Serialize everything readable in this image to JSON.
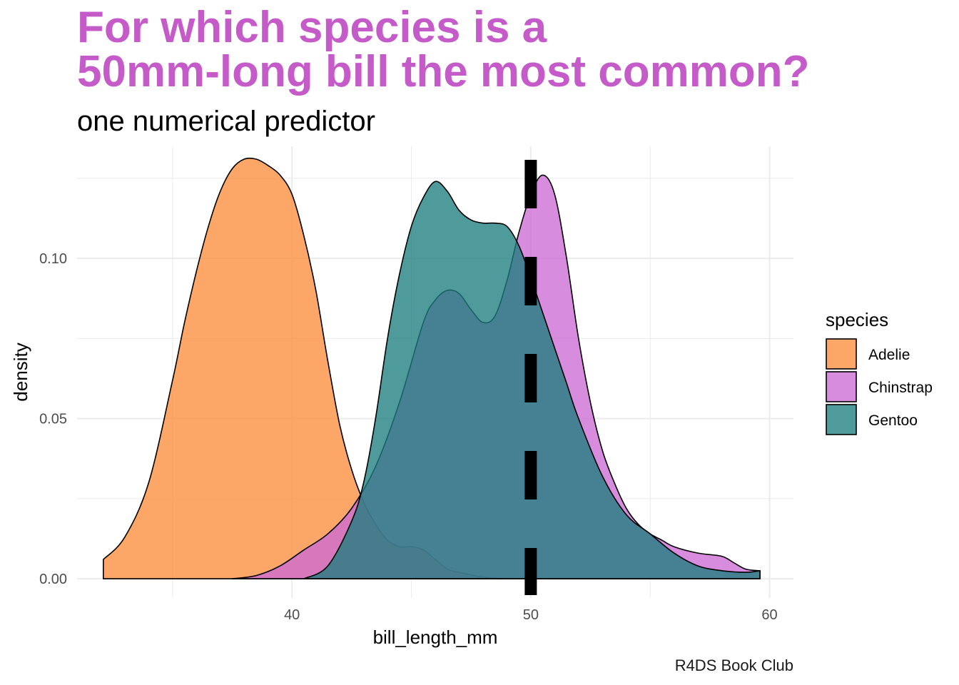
{
  "header": {
    "title_line1": "For which species is a",
    "title_line2": "50mm-long bill the most common?",
    "subtitle": "one numerical predictor"
  },
  "caption": "R4DS Book Club",
  "colors": {
    "title": "#C55BC8",
    "Adelie": "#FB8D3D",
    "Chinstrap": "#CC6BD3",
    "Gentoo": "#1D7D7E",
    "grid": "#EBEBEB"
  },
  "chart_data": {
    "type": "area",
    "subtype": "density",
    "title": "For which species is a 50mm-long bill the most common?",
    "subtitle": "one numerical predictor",
    "xlabel": "bill_length_mm",
    "ylabel": "density",
    "xlim": [
      31,
      61
    ],
    "ylim": [
      -0.006,
      0.135
    ],
    "xticks": [
      40,
      50,
      60
    ],
    "xtick_labels": [
      "40",
      "50",
      "60"
    ],
    "yticks": [
      0.0,
      0.05,
      0.1
    ],
    "ytick_labels": [
      "0.00",
      "0.05",
      "0.10"
    ],
    "grid": true,
    "legend": {
      "title": "species",
      "position": "right",
      "entries": [
        "Adelie",
        "Chinstrap",
        "Gentoo"
      ]
    },
    "reference_line": {
      "x": 50,
      "style": "dashed",
      "color": "#000000"
    },
    "series": [
      {
        "name": "Adelie",
        "color": "#FB8D3D",
        "x": [
          32.1,
          33,
          34,
          35,
          35.5,
          36,
          36.5,
          37,
          37.5,
          38,
          38.5,
          39,
          39.5,
          40,
          40.5,
          41,
          41.5,
          42,
          42.5,
          43,
          43.5,
          44,
          44.5,
          45,
          45.5,
          46,
          46.5,
          47,
          48,
          49
        ],
        "y": [
          0.006,
          0.013,
          0.03,
          0.062,
          0.08,
          0.096,
          0.11,
          0.121,
          0.128,
          0.131,
          0.131,
          0.129,
          0.126,
          0.12,
          0.107,
          0.09,
          0.068,
          0.048,
          0.034,
          0.024,
          0.017,
          0.012,
          0.01,
          0.01,
          0.009,
          0.006,
          0.003,
          0.002,
          0.0005,
          0.0
        ]
      },
      {
        "name": "Chinstrap",
        "color": "#CC6BD3",
        "x": [
          37.5,
          38.5,
          39.5,
          40.5,
          41.5,
          42.5,
          43.5,
          44.5,
          45.5,
          46,
          46.5,
          47,
          47.5,
          48,
          48.5,
          49,
          49.5,
          50,
          50.5,
          51,
          51.5,
          52,
          52.5,
          53,
          53.5,
          54,
          54.5,
          55,
          55.5,
          56,
          57,
          58,
          58.5,
          59,
          59.6
        ],
        "y": [
          0.0,
          0.001,
          0.004,
          0.009,
          0.014,
          0.022,
          0.035,
          0.055,
          0.08,
          0.087,
          0.09,
          0.089,
          0.084,
          0.08,
          0.082,
          0.093,
          0.108,
          0.12,
          0.126,
          0.12,
          0.1,
          0.075,
          0.055,
          0.04,
          0.03,
          0.022,
          0.017,
          0.014,
          0.012,
          0.01,
          0.008,
          0.007,
          0.005,
          0.003,
          0.0025
        ]
      },
      {
        "name": "Gentoo",
        "color": "#1D7D7E",
        "x": [
          40.5,
          41.5,
          42.5,
          43,
          43.5,
          44,
          44.5,
          45,
          45.5,
          46,
          46.5,
          47,
          47.5,
          48,
          48.5,
          49,
          49.5,
          50,
          50.5,
          51,
          51.5,
          52,
          53,
          54,
          55,
          56,
          57,
          58,
          59,
          59.6
        ],
        "y": [
          0.0,
          0.004,
          0.018,
          0.03,
          0.05,
          0.075,
          0.095,
          0.11,
          0.119,
          0.124,
          0.121,
          0.115,
          0.112,
          0.111,
          0.111,
          0.11,
          0.104,
          0.094,
          0.083,
          0.072,
          0.061,
          0.05,
          0.032,
          0.02,
          0.014,
          0.008,
          0.004,
          0.0025,
          0.002,
          0.0025
        ]
      }
    ]
  }
}
